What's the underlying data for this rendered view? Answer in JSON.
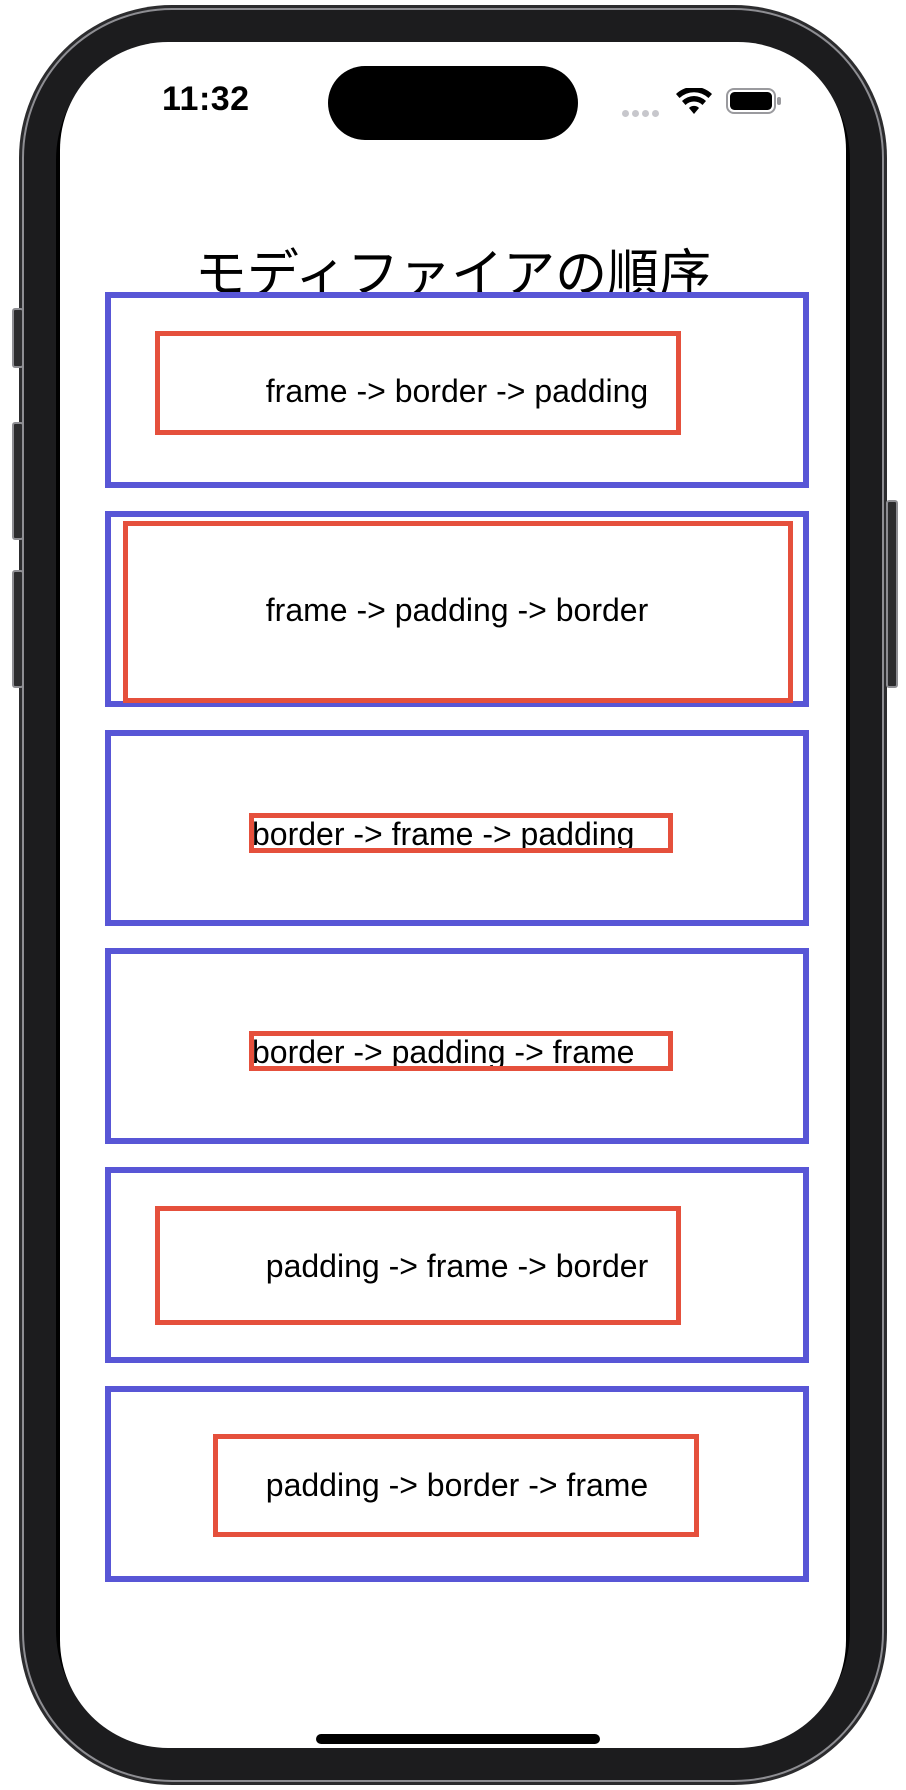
{
  "status_bar": {
    "time": "11:32"
  },
  "title": "モディファイアの順序",
  "examples": [
    {
      "label": "frame -> border -> padding"
    },
    {
      "label": "frame -> padding -> border"
    },
    {
      "label": "border -> frame -> padding"
    },
    {
      "label": "border -> padding -> frame"
    },
    {
      "label": "padding -> frame -> border"
    },
    {
      "label": "padding -> border -> frame"
    }
  ],
  "colors": {
    "outer_border": "#5856d6",
    "inner_border": "#e5503c"
  }
}
